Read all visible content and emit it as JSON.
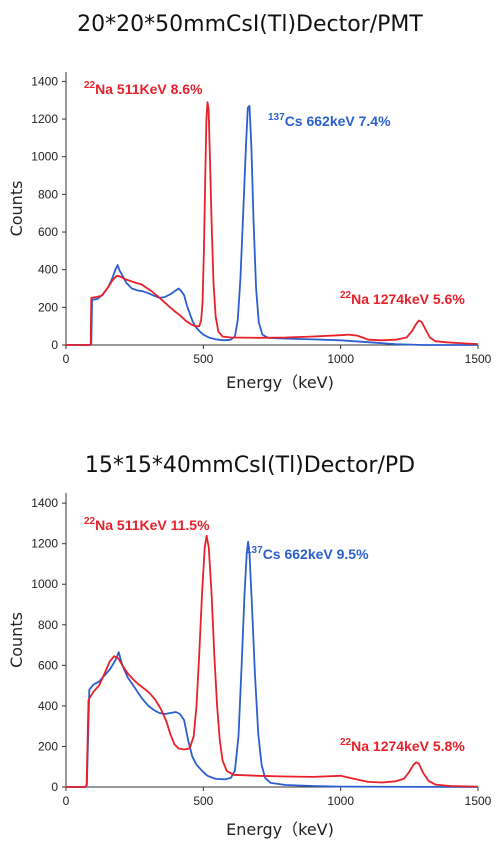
{
  "chart_data": [
    {
      "type": "line",
      "title": "20*20*50mmCsI(Tl)Dector/PMT",
      "xlabel": "Energy（keV)",
      "ylabel": "Counts",
      "xlim": [
        0,
        1500
      ],
      "ylim": [
        0,
        1450
      ],
      "xticks": [
        "0",
        "500",
        "1000",
        "1500"
      ],
      "yticks": [
        "0",
        "200",
        "400",
        "600",
        "800",
        "1000",
        "1200",
        "1400"
      ],
      "grid": false,
      "series": [
        {
          "color": "#e8202a",
          "points": [
            [
              0,
              0
            ],
            [
              85,
              0
            ],
            [
              90,
              5
            ],
            [
              92,
              250
            ],
            [
              110,
              255
            ],
            [
              130,
              262
            ],
            [
              150,
              300
            ],
            [
              170,
              345
            ],
            [
              185,
              368
            ],
            [
              200,
              362
            ],
            [
              215,
              350
            ],
            [
              235,
              340
            ],
            [
              255,
              330
            ],
            [
              275,
              322
            ],
            [
              295,
              302
            ],
            [
              315,
              282
            ],
            [
              335,
              258
            ],
            [
              355,
              232
            ],
            [
              375,
              205
            ],
            [
              395,
              180
            ],
            [
              415,
              158
            ],
            [
              435,
              130
            ],
            [
              455,
              110
            ],
            [
              470,
              100
            ],
            [
              485,
              100
            ],
            [
              492,
              130
            ],
            [
              497,
              220
            ],
            [
              502,
              500
            ],
            [
              507,
              900
            ],
            [
              511,
              1200
            ],
            [
              515,
              1290
            ],
            [
              519,
              1250
            ],
            [
              524,
              1000
            ],
            [
              530,
              650
            ],
            [
              537,
              330
            ],
            [
              545,
              150
            ],
            [
              555,
              70
            ],
            [
              570,
              45
            ],
            [
              600,
              40
            ],
            [
              700,
              38
            ],
            [
              800,
              40
            ],
            [
              900,
              45
            ],
            [
              1000,
              52
            ],
            [
              1030,
              55
            ],
            [
              1060,
              50
            ],
            [
              1080,
              40
            ],
            [
              1100,
              28
            ],
            [
              1150,
              25
            ],
            [
              1200,
              28
            ],
            [
              1240,
              40
            ],
            [
              1260,
              75
            ],
            [
              1275,
              112
            ],
            [
              1285,
              130
            ],
            [
              1295,
              122
            ],
            [
              1310,
              80
            ],
            [
              1325,
              40
            ],
            [
              1345,
              20
            ],
            [
              1380,
              15
            ],
            [
              1430,
              10
            ],
            [
              1500,
              5
            ]
          ]
        },
        {
          "color": "#2b5fcf",
          "points": [
            [
              0,
              0
            ],
            [
              88,
              0
            ],
            [
              92,
              5
            ],
            [
              95,
              240
            ],
            [
              115,
              245
            ],
            [
              135,
              270
            ],
            [
              155,
              310
            ],
            [
              170,
              360
            ],
            [
              180,
              400
            ],
            [
              188,
              425
            ],
            [
              195,
              395
            ],
            [
              205,
              370
            ],
            [
              220,
              330
            ],
            [
              240,
              300
            ],
            [
              260,
              290
            ],
            [
              280,
              285
            ],
            [
              300,
              275
            ],
            [
              320,
              262
            ],
            [
              340,
              250
            ],
            [
              360,
              255
            ],
            [
              380,
              270
            ],
            [
              400,
              290
            ],
            [
              410,
              300
            ],
            [
              420,
              285
            ],
            [
              430,
              265
            ],
            [
              440,
              210
            ],
            [
              450,
              170
            ],
            [
              460,
              130
            ],
            [
              470,
              100
            ],
            [
              485,
              75
            ],
            [
              500,
              55
            ],
            [
              520,
              40
            ],
            [
              545,
              30
            ],
            [
              575,
              25
            ],
            [
              600,
              28
            ],
            [
              615,
              45
            ],
            [
              625,
              130
            ],
            [
              635,
              350
            ],
            [
              645,
              700
            ],
            [
              655,
              1050
            ],
            [
              662,
              1260
            ],
            [
              668,
              1270
            ],
            [
              675,
              1050
            ],
            [
              683,
              650
            ],
            [
              692,
              300
            ],
            [
              702,
              120
            ],
            [
              715,
              55
            ],
            [
              735,
              38
            ],
            [
              800,
              34
            ],
            [
              900,
              30
            ],
            [
              1000,
              25
            ],
            [
              1100,
              15
            ],
            [
              1200,
              5
            ],
            [
              1300,
              0
            ],
            [
              1500,
              0
            ]
          ]
        }
      ],
      "annotations": [
        {
          "color": "#e8202a",
          "sup": "22",
          "text": "Na 511KeV 8.6%"
        },
        {
          "color": "#2b5fcf",
          "sup": "137",
          "text": "Cs 662keV 7.4%"
        },
        {
          "color": "#e8202a",
          "sup": "22",
          "text": "Na 1274keV 5.6%"
        }
      ]
    },
    {
      "type": "line",
      "title": "15*15*40mmCsI(Tl)Dector/PD",
      "xlabel": "Energy（keV)",
      "ylabel": "Counts",
      "xlim": [
        0,
        1500
      ],
      "ylim": [
        0,
        1450
      ],
      "xticks": [
        "0",
        "500",
        "1000",
        "1500"
      ],
      "yticks": [
        "0",
        "200",
        "400",
        "600",
        "800",
        "1000",
        "1200",
        "1400"
      ],
      "grid": false,
      "series": [
        {
          "color": "#e8202a",
          "points": [
            [
              0,
              0
            ],
            [
              70,
              0
            ],
            [
              75,
              10
            ],
            [
              82,
              430
            ],
            [
              100,
              470
            ],
            [
              120,
              500
            ],
            [
              140,
              560
            ],
            [
              160,
              620
            ],
            [
              175,
              645
            ],
            [
              190,
              635
            ],
            [
              205,
              600
            ],
            [
              225,
              560
            ],
            [
              245,
              530
            ],
            [
              265,
              505
            ],
            [
              285,
              485
            ],
            [
              305,
              462
            ],
            [
              325,
              430
            ],
            [
              345,
              385
            ],
            [
              365,
              325
            ],
            [
              380,
              260
            ],
            [
              395,
              210
            ],
            [
              410,
              190
            ],
            [
              430,
              185
            ],
            [
              450,
              190
            ],
            [
              465,
              250
            ],
            [
              475,
              400
            ],
            [
              485,
              650
            ],
            [
              495,
              950
            ],
            [
              505,
              1180
            ],
            [
              512,
              1240
            ],
            [
              520,
              1180
            ],
            [
              530,
              950
            ],
            [
              540,
              650
            ],
            [
              550,
              400
            ],
            [
              560,
              230
            ],
            [
              570,
              130
            ],
            [
              585,
              80
            ],
            [
              610,
              60
            ],
            [
              700,
              55
            ],
            [
              800,
              52
            ],
            [
              900,
              50
            ],
            [
              1000,
              55
            ],
            [
              1050,
              40
            ],
            [
              1100,
              25
            ],
            [
              1150,
              22
            ],
            [
              1200,
              28
            ],
            [
              1230,
              40
            ],
            [
              1250,
              75
            ],
            [
              1265,
              110
            ],
            [
              1275,
              122
            ],
            [
              1285,
              115
            ],
            [
              1300,
              70
            ],
            [
              1320,
              30
            ],
            [
              1345,
              12
            ],
            [
              1400,
              5
            ],
            [
              1500,
              2
            ]
          ]
        },
        {
          "color": "#2b5fcf",
          "points": [
            [
              0,
              0
            ],
            [
              72,
              0
            ],
            [
              76,
              10
            ],
            [
              85,
              480
            ],
            [
              100,
              505
            ],
            [
              120,
              520
            ],
            [
              140,
              550
            ],
            [
              160,
              580
            ],
            [
              180,
              625
            ],
            [
              192,
              665
            ],
            [
              205,
              600
            ],
            [
              225,
              540
            ],
            [
              250,
              490
            ],
            [
              275,
              440
            ],
            [
              300,
              400
            ],
            [
              320,
              380
            ],
            [
              340,
              365
            ],
            [
              360,
              360
            ],
            [
              380,
              365
            ],
            [
              400,
              370
            ],
            [
              415,
              360
            ],
            [
              430,
              330
            ],
            [
              445,
              230
            ],
            [
              460,
              150
            ],
            [
              475,
              110
            ],
            [
              495,
              80
            ],
            [
              515,
              55
            ],
            [
              545,
              40
            ],
            [
              580,
              38
            ],
            [
              600,
              45
            ],
            [
              615,
              80
            ],
            [
              628,
              250
            ],
            [
              640,
              620
            ],
            [
              650,
              950
            ],
            [
              658,
              1150
            ],
            [
              663,
              1210
            ],
            [
              668,
              1150
            ],
            [
              677,
              900
            ],
            [
              688,
              550
            ],
            [
              700,
              260
            ],
            [
              712,
              110
            ],
            [
              725,
              45
            ],
            [
              745,
              20
            ],
            [
              800,
              10
            ],
            [
              900,
              5
            ],
            [
              1000,
              2
            ],
            [
              1500,
              0
            ]
          ]
        }
      ],
      "annotations": [
        {
          "color": "#e8202a",
          "sup": "22",
          "text": "Na 511KeV 11.5%"
        },
        {
          "color": "#2b5fcf",
          "sup": "137",
          "text": "Cs 662keV 9.5%"
        },
        {
          "color": "#e8202a",
          "sup": "22",
          "text": "Na 1274keV 5.8%"
        }
      ]
    }
  ]
}
